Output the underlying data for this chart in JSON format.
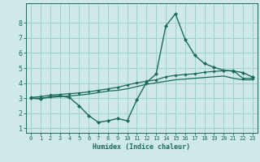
{
  "xlabel": "Humidex (Indice chaleur)",
  "ylabel": "",
  "bg_color": "#cfe8e8",
  "grid_color": "#9ecece",
  "line_color": "#1a6b5a",
  "spine_color": "#1a6b5a",
  "xlim": [
    -0.5,
    23.5
  ],
  "ylim": [
    0.7,
    9.3
  ],
  "xticks": [
    0,
    1,
    2,
    3,
    4,
    5,
    6,
    7,
    8,
    9,
    10,
    11,
    12,
    13,
    14,
    15,
    16,
    17,
    18,
    19,
    20,
    21,
    22,
    23
  ],
  "yticks": [
    1,
    2,
    3,
    4,
    5,
    6,
    7,
    8
  ],
  "line1_x": [
    0,
    1,
    2,
    3,
    4,
    5,
    6,
    7,
    8,
    9,
    10,
    11,
    12,
    13,
    14,
    15,
    16,
    17,
    18,
    19,
    20,
    21,
    22,
    23
  ],
  "line1_y": [
    3.0,
    2.95,
    3.1,
    3.15,
    3.05,
    2.5,
    1.85,
    1.4,
    1.5,
    1.65,
    1.5,
    2.9,
    4.05,
    4.6,
    7.8,
    8.6,
    6.9,
    5.85,
    5.3,
    5.05,
    4.85,
    4.8,
    4.7,
    4.4
  ],
  "line2_x": [
    0,
    1,
    2,
    3,
    4,
    5,
    6,
    7,
    8,
    9,
    10,
    11,
    12,
    13,
    14,
    15,
    16,
    17,
    18,
    19,
    20,
    21,
    22,
    23
  ],
  "line2_y": [
    3.05,
    3.1,
    3.2,
    3.25,
    3.3,
    3.35,
    3.42,
    3.52,
    3.62,
    3.72,
    3.88,
    4.02,
    4.12,
    4.22,
    4.42,
    4.52,
    4.57,
    4.62,
    4.72,
    4.78,
    4.82,
    4.82,
    4.32,
    4.32
  ],
  "line3_x": [
    0,
    1,
    2,
    3,
    4,
    5,
    6,
    7,
    8,
    9,
    10,
    11,
    12,
    13,
    14,
    15,
    16,
    17,
    18,
    19,
    20,
    21,
    22,
    23
  ],
  "line3_y": [
    3.0,
    3.0,
    3.05,
    3.1,
    3.15,
    3.2,
    3.27,
    3.37,
    3.47,
    3.52,
    3.62,
    3.77,
    3.92,
    4.02,
    4.12,
    4.22,
    4.27,
    4.32,
    4.37,
    4.42,
    4.47,
    4.32,
    4.22,
    4.22
  ]
}
